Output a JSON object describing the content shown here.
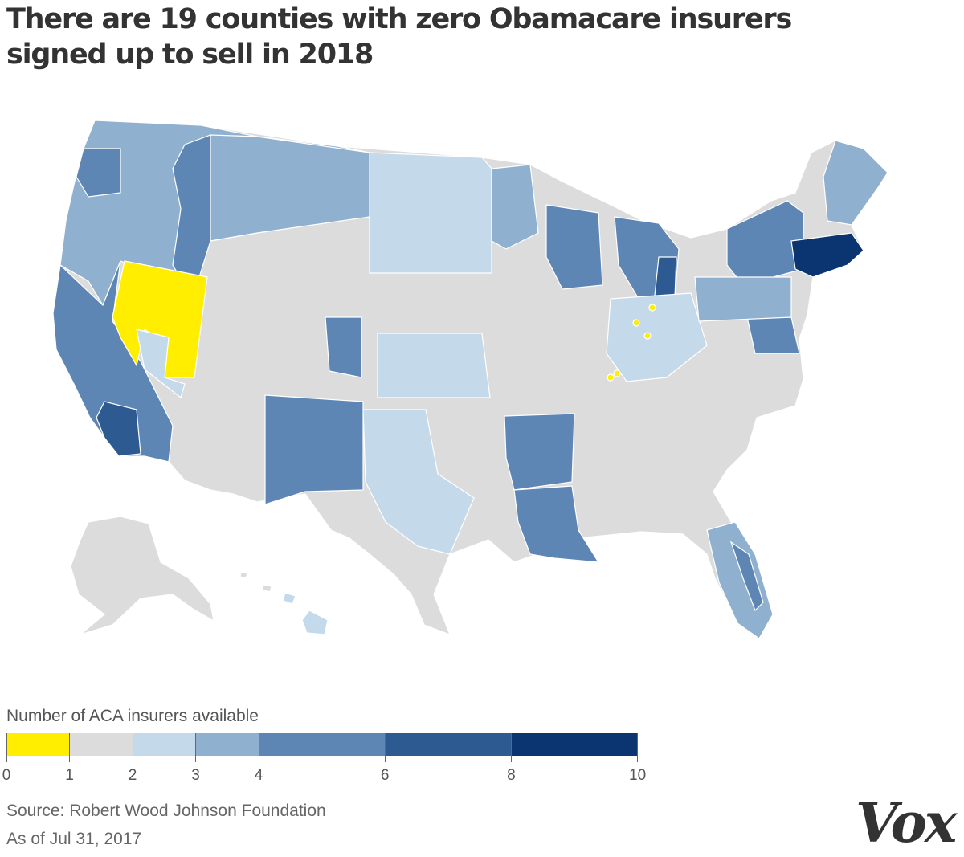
{
  "title": "There are 19 counties with zero Obamacare insurers signed up to sell in 2018",
  "legend": {
    "title": "Number of ACA insurers available",
    "bins": [
      {
        "from": 0,
        "to": 1,
        "color": "#ffee00"
      },
      {
        "from": 1,
        "to": 2,
        "color": "#dcdcdc"
      },
      {
        "from": 2,
        "to": 3,
        "color": "#c4d9ea"
      },
      {
        "from": 3,
        "to": 4,
        "color": "#8fb0cf"
      },
      {
        "from": 4,
        "to": 6,
        "color": "#5e86b5"
      },
      {
        "from": 6,
        "to": 8,
        "color": "#2d5a91"
      },
      {
        "from": 8,
        "to": 10,
        "color": "#0b3571"
      }
    ],
    "tick_labels": [
      "0",
      "1",
      "2",
      "3",
      "4",
      "6",
      "8",
      "10"
    ]
  },
  "source": "Source: Robert Wood Johnson Foundation",
  "date": "As of Jul 31, 2017",
  "logo_text": "Vox",
  "map_colors": {
    "zero": "#ffee00",
    "one": "#dcdcdc",
    "two": "#c4d9ea",
    "three": "#8fb0cf",
    "four_to_six": "#5e86b5",
    "six_to_eight": "#2d5a91",
    "eight_plus": "#0b3571",
    "border": "#ffffff"
  }
}
